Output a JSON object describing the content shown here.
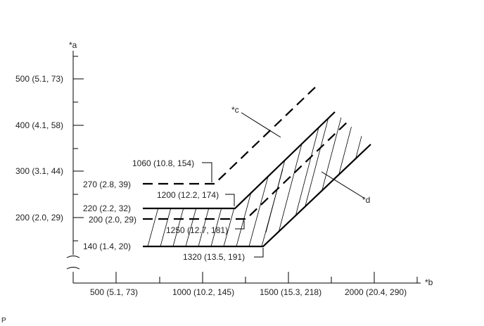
{
  "diagram": {
    "axis_y_label": "*a",
    "axis_x_label": "*b",
    "y_ticks": [
      "500 (5.1, 73)",
      "400 (4.1, 58)",
      "300 (3.1, 44)",
      "200 (2.0, 29)"
    ],
    "x_ticks": [
      "500 (5.1, 73)",
      "1000 (10.2, 145)",
      "1500 (15.3, 218)",
      "2000 (20.4, 290)"
    ],
    "annotations": {
      "a1060": "1060 (10.8, 154)",
      "a270": "270 (2.8, 39)",
      "a1200": "1200 (12.2, 174)",
      "a220": "220 (2.2, 32)",
      "a200": "200 (2.0, 29)",
      "a1250": "1250 (12.7, 181)",
      "a140": "140 (1.4, 20)",
      "a1320": "1320 (13.5, 191)"
    },
    "callouts": {
      "c": "*c",
      "d": "*d"
    },
    "footer_code": "P"
  }
}
